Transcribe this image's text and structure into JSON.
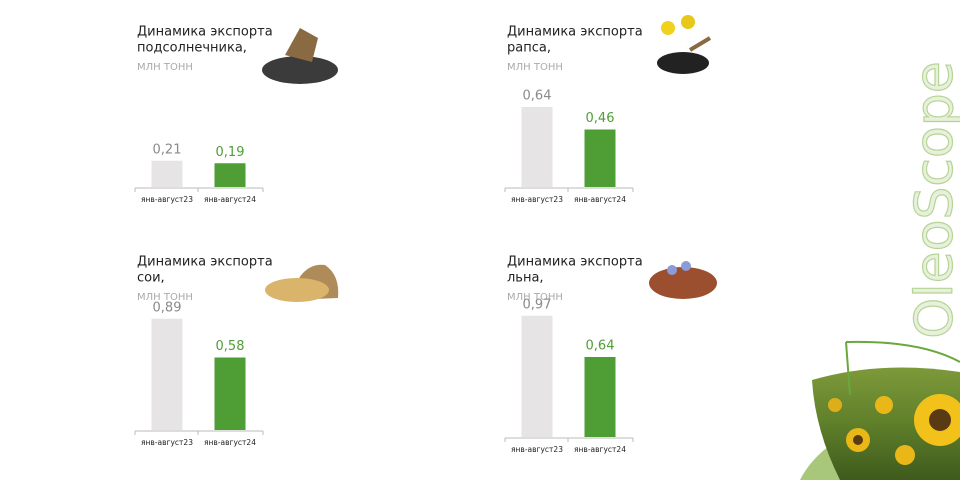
{
  "brand": "OleoScope",
  "chart_data": [
    {
      "type": "bar",
      "title": [
        "Динамика экспорта",
        "подсолнечника,"
      ],
      "subtitle": "МЛН ТОНН",
      "categories": [
        "янв-август23",
        "янв-август24"
      ],
      "values": [
        0.21,
        0.19
      ],
      "value_labels": [
        "0,21",
        "0,19"
      ],
      "colors": [
        "#e6e4e4",
        "#4f9e35"
      ],
      "label_colors": [
        "#8a8a8a",
        "#4f9e35"
      ]
    },
    {
      "type": "bar",
      "title": [
        "Динамика экспорта",
        "рапса,"
      ],
      "subtitle": "МЛН ТОНН",
      "categories": [
        "янв-август23",
        "янв-август24"
      ],
      "values": [
        0.64,
        0.46
      ],
      "value_labels": [
        "0,64",
        "0,46"
      ],
      "colors": [
        "#e6e4e4",
        "#4f9e35"
      ],
      "label_colors": [
        "#8a8a8a",
        "#4f9e35"
      ]
    },
    {
      "type": "bar",
      "title": [
        "Динамика экспорта",
        "сои,"
      ],
      "subtitle": "МЛН ТОНН",
      "categories": [
        "янв-август23",
        "янв-август24"
      ],
      "values": [
        0.89,
        0.58
      ],
      "value_labels": [
        "0,89",
        "0,58"
      ],
      "colors": [
        "#e6e4e4",
        "#4f9e35"
      ],
      "label_colors": [
        "#8a8a8a",
        "#4f9e35"
      ]
    },
    {
      "type": "bar",
      "title": [
        "Динамика экспорта",
        "льна,"
      ],
      "subtitle": "МЛН ТОНН",
      "categories": [
        "янв-август23",
        "янв-август24"
      ],
      "values": [
        0.97,
        0.64
      ],
      "value_labels": [
        "0,97",
        "0,64"
      ],
      "colors": [
        "#e6e4e4",
        "#4f9e35"
      ],
      "label_colors": [
        "#8a8a8a",
        "#4f9e35"
      ]
    }
  ]
}
